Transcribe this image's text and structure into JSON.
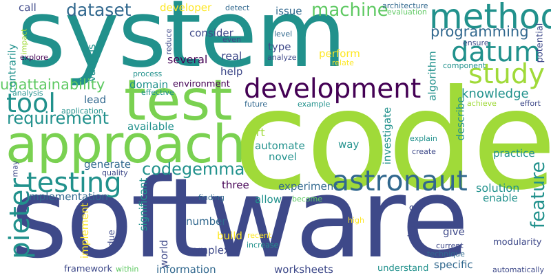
{
  "words": [
    {
      "text": "system",
      "color": "#21918c"
    },
    {
      "text": "code",
      "color": "#a0da39"
    },
    {
      "text": "software",
      "color": "#3e4989"
    },
    {
      "text": "test",
      "color": "#7ad151"
    },
    {
      "text": "approach",
      "color": "#7ad151"
    },
    {
      "text": "method",
      "color": "#21918c"
    },
    {
      "text": "development",
      "color": "#440154"
    },
    {
      "text": "datum",
      "color": "#21918c"
    },
    {
      "text": "study",
      "color": "#a0da39"
    },
    {
      "text": "testing",
      "color": "#21918c"
    },
    {
      "text": "astronaut",
      "color": "#31688e"
    },
    {
      "text": "pieter",
      "color": "#21918c"
    },
    {
      "text": "tool",
      "color": "#21918c"
    },
    {
      "text": "dataset",
      "color": "#31688e"
    },
    {
      "text": "machine",
      "color": "#5ec962"
    },
    {
      "text": "programming",
      "color": "#31688e"
    },
    {
      "text": "requirement",
      "color": "#21918c"
    },
    {
      "text": "codegemma",
      "color": "#21918c"
    },
    {
      "text": "unattainability",
      "color": "#5ec962"
    },
    {
      "text": "feature",
      "color": "#21918c"
    },
    {
      "text": "implementation",
      "color": "#31688e"
    },
    {
      "text": "knowledge",
      "color": "#21918c"
    },
    {
      "text": "call",
      "color": "#3e4989"
    },
    {
      "text": "developer",
      "color": "#fde725"
    },
    {
      "text": "detect",
      "color": "#31688e"
    },
    {
      "text": "issue",
      "color": "#31688e"
    },
    {
      "text": "architecture",
      "color": "#31688e"
    },
    {
      "text": "evaluation",
      "color": "#5ec962"
    },
    {
      "text": "consider",
      "color": "#3e4989"
    },
    {
      "text": "even",
      "color": "#3e4989"
    },
    {
      "text": "level",
      "color": "#31688e"
    },
    {
      "text": "ensure",
      "color": "#3e4989"
    },
    {
      "text": "potential",
      "color": "#3e4989"
    },
    {
      "text": "reduce",
      "color": "#3e4989"
    },
    {
      "text": "real",
      "color": "#3e4989"
    },
    {
      "text": "type",
      "color": "#3e4989"
    },
    {
      "text": "perform",
      "color": "#fde725"
    },
    {
      "text": "analyze",
      "color": "#3e4989"
    },
    {
      "text": "relate",
      "color": "#fde725"
    },
    {
      "text": "component",
      "color": "#21918c"
    },
    {
      "text": "impact",
      "color": "#a0da39"
    },
    {
      "text": "contrarily",
      "color": "#21918c"
    },
    {
      "text": "explore",
      "color": "#440154"
    },
    {
      "text": "various",
      "color": "#21918c"
    },
    {
      "text": "several",
      "color": "#440154"
    },
    {
      "text": "help",
      "color": "#3e4989"
    },
    {
      "text": "process",
      "color": "#21918c"
    },
    {
      "text": "domain",
      "color": "#21918c"
    },
    {
      "text": "environment",
      "color": "#440154"
    },
    {
      "text": "algorithm",
      "color": "#21918c"
    },
    {
      "text": "achieve",
      "color": "#a0da39"
    },
    {
      "text": "effort",
      "color": "#3e4989"
    },
    {
      "text": "analysis",
      "color": "#21918c"
    },
    {
      "text": "effective",
      "color": "#21918c"
    },
    {
      "text": "lead",
      "color": "#31688e"
    },
    {
      "text": "future",
      "color": "#31688e"
    },
    {
      "text": "example",
      "color": "#21918c"
    },
    {
      "text": "application",
      "color": "#21918c"
    },
    {
      "text": "describe",
      "color": "#21918c"
    },
    {
      "text": "investigate",
      "color": "#21918c"
    },
    {
      "text": "available",
      "color": "#21918c"
    },
    {
      "text": "art",
      "color": "#a0da39"
    },
    {
      "text": "explain",
      "color": "#21918c"
    },
    {
      "text": "automate",
      "color": "#21918c"
    },
    {
      "text": "novel",
      "color": "#21918c"
    },
    {
      "text": "way",
      "color": "#21918c"
    },
    {
      "text": "create",
      "color": "#3e4989"
    },
    {
      "text": "practice",
      "color": "#21918c"
    },
    {
      "text": "may",
      "color": "#3e4989"
    },
    {
      "text": "quality",
      "color": "#3e4989"
    },
    {
      "text": "generate",
      "color": "#31688e"
    },
    {
      "text": "significant",
      "color": "#21918c"
    },
    {
      "text": "three",
      "color": "#440154"
    },
    {
      "text": "experiment",
      "color": "#31688e"
    },
    {
      "text": "solution",
      "color": "#21918c"
    },
    {
      "text": "finding",
      "color": "#31688e"
    },
    {
      "text": "become",
      "color": "#5ec962"
    },
    {
      "text": "allow",
      "color": "#21918c"
    },
    {
      "text": "enable",
      "color": "#21918c"
    },
    {
      "text": "implement",
      "color": "#fde725"
    },
    {
      "text": "number",
      "color": "#31688e"
    },
    {
      "text": "high",
      "color": "#fde725"
    },
    {
      "text": "change",
      "color": "#3e4989"
    },
    {
      "text": "give",
      "color": "#3e4989"
    },
    {
      "text": "due",
      "color": "#3e4989"
    },
    {
      "text": "build",
      "color": "#fde725"
    },
    {
      "text": "recent",
      "color": "#fde725"
    },
    {
      "text": "world",
      "color": "#3e4989"
    },
    {
      "text": "complex",
      "color": "#3e4989"
    },
    {
      "text": "increase",
      "color": "#21918c"
    },
    {
      "text": "current",
      "color": "#3e4989"
    },
    {
      "text": "modularity",
      "color": "#3e4989"
    },
    {
      "text": "technique",
      "color": "#31688e"
    },
    {
      "text": "information",
      "color": "#31688e"
    },
    {
      "text": "specific",
      "color": "#31688e"
    },
    {
      "text": "framework",
      "color": "#3e4989"
    },
    {
      "text": "within",
      "color": "#5ec962"
    },
    {
      "text": "worksheets",
      "color": "#3e4989"
    },
    {
      "text": "understand",
      "color": "#21918c"
    },
    {
      "text": "automatically",
      "color": "#3e4989"
    }
  ]
}
